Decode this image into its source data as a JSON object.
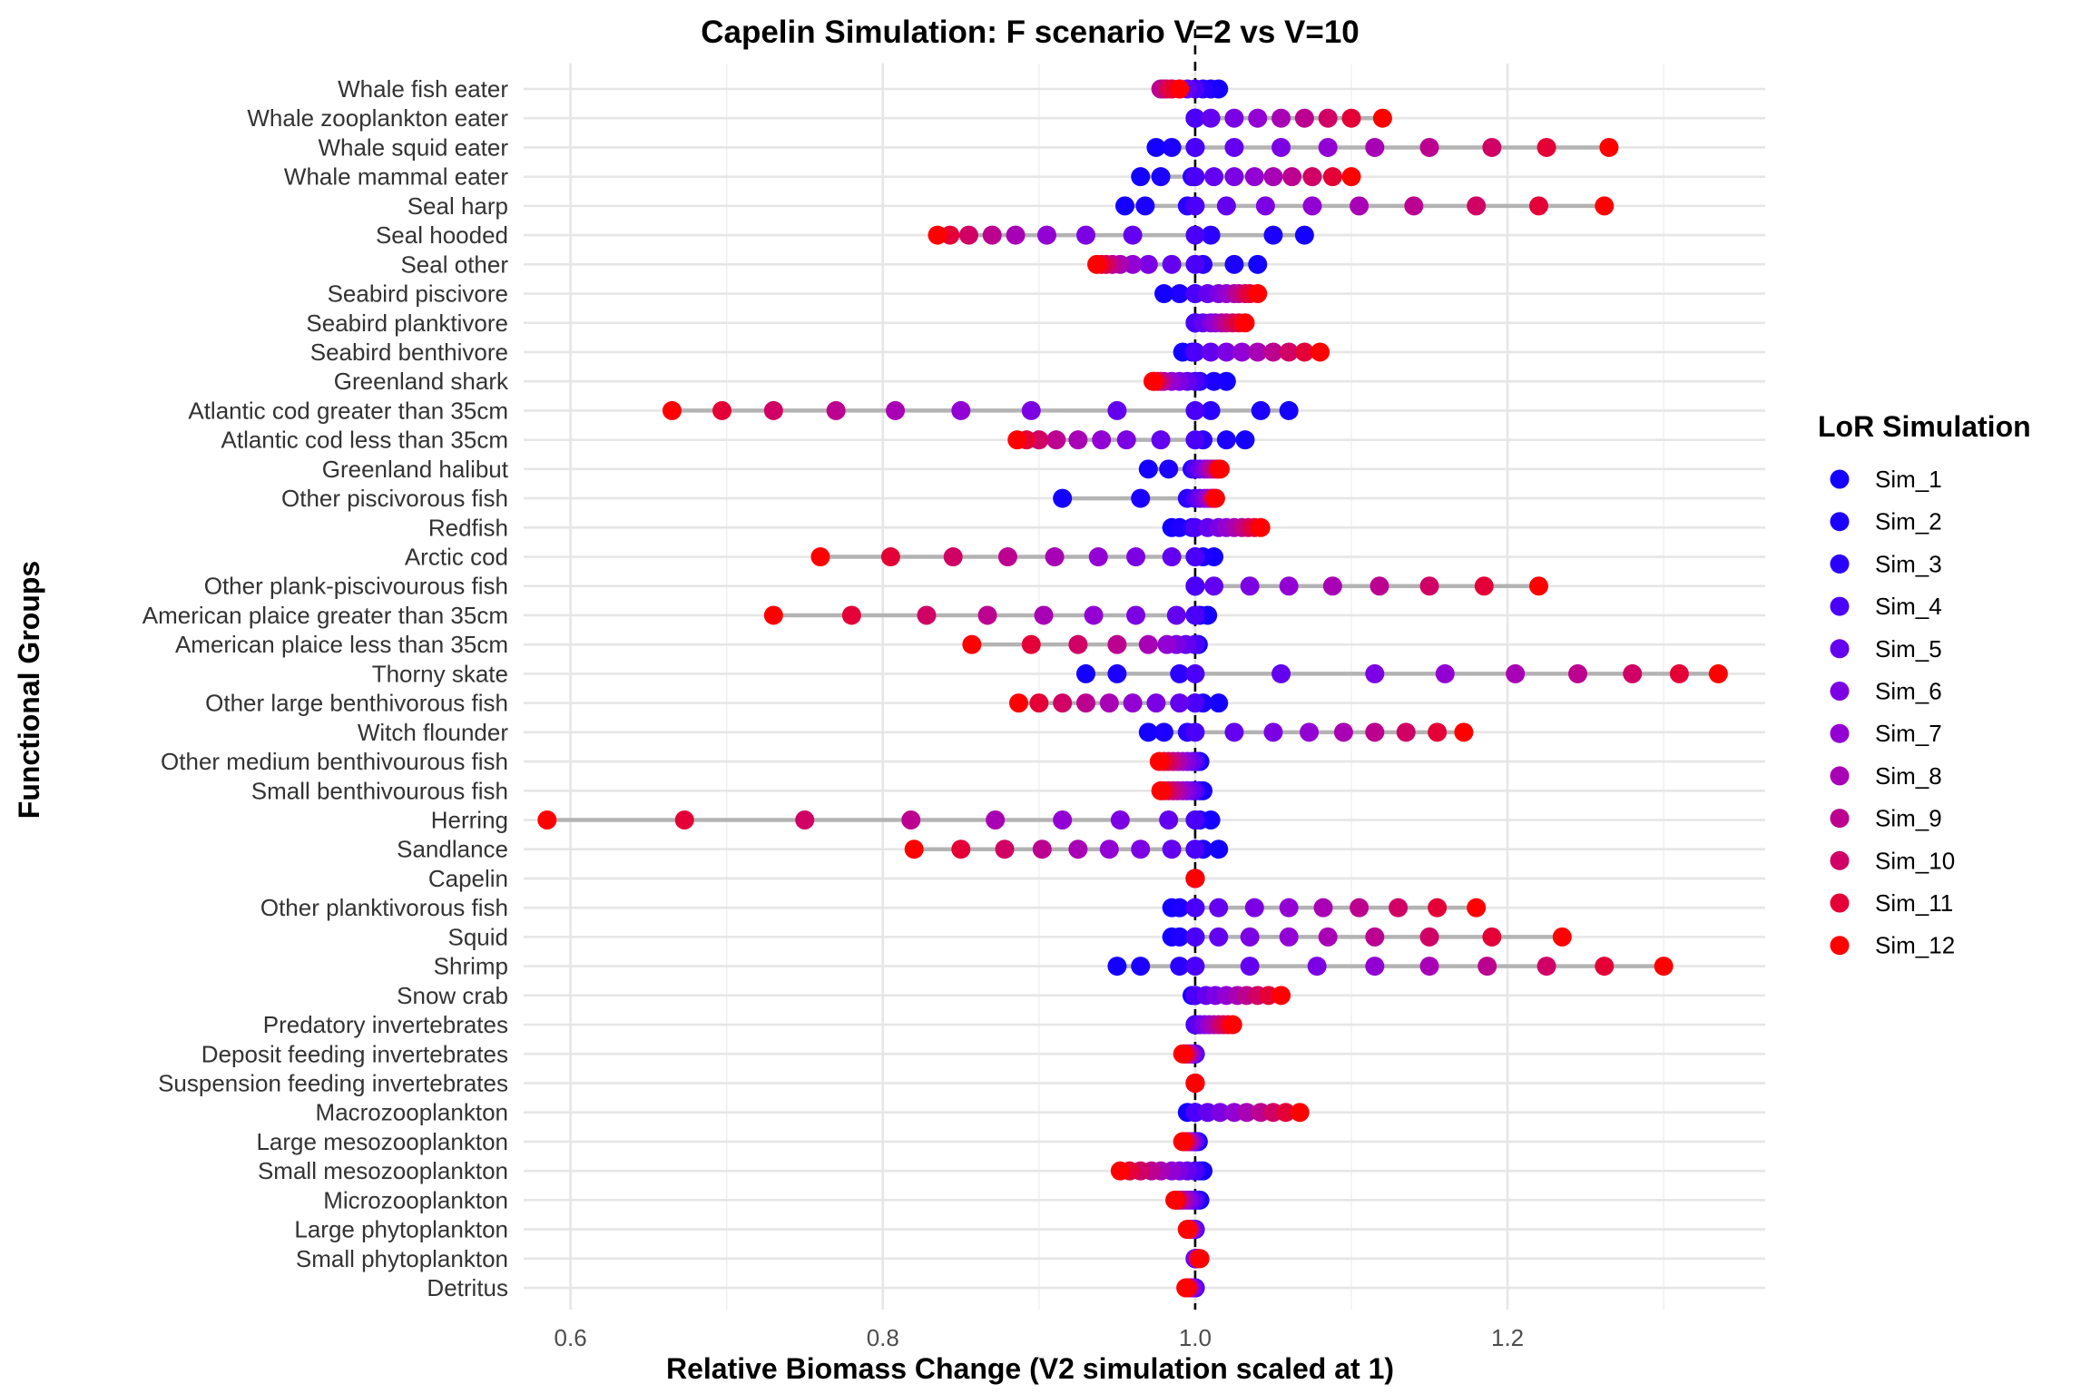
{
  "chart_data": {
    "type": "scatter",
    "title": "Capelin Simulation: F scenario V=2 vs V=10",
    "xlabel": "Relative Biomass Change (V2 simulation scaled at 1)",
    "ylabel": "Functional Groups",
    "xlim": [
      0.57,
      1.365
    ],
    "x_ticks": [
      0.6,
      0.8,
      1.0,
      1.2
    ],
    "x_tick_labels": [
      "0.6",
      "0.8",
      "1.0",
      "1.2"
    ],
    "reference_line": 1.0,
    "grid": true,
    "legend_title": "LoR Simulation",
    "legend_position": "right",
    "series": [
      {
        "name": "Sim_1",
        "color": "#1400FF"
      },
      {
        "name": "Sim_2",
        "color": "#1C00FF"
      },
      {
        "name": "Sim_3",
        "color": "#2A00FF"
      },
      {
        "name": "Sim_4",
        "color": "#4A00F8"
      },
      {
        "name": "Sim_5",
        "color": "#6400F0"
      },
      {
        "name": "Sim_6",
        "color": "#7C00E4"
      },
      {
        "name": "Sim_7",
        "color": "#9200D4"
      },
      {
        "name": "Sim_8",
        "color": "#A800B4"
      },
      {
        "name": "Sim_9",
        "color": "#BC0090"
      },
      {
        "name": "Sim_10",
        "color": "#D00064"
      },
      {
        "name": "Sim_11",
        "color": "#E40036"
      },
      {
        "name": "Sim_12",
        "color": "#FF0000"
      }
    ],
    "groups": [
      {
        "name": "Whale fish eater",
        "values": [
          1.015,
          1.01,
          1.005,
          1.0,
          0.995,
          0.99,
          0.985,
          0.98,
          0.978,
          0.982,
          0.985,
          0.99
        ]
      },
      {
        "name": "Whale zooplankton eater",
        "values": [
          1.0,
          1.0,
          1.0,
          1.0,
          1.01,
          1.025,
          1.04,
          1.055,
          1.07,
          1.085,
          1.1,
          1.12
        ]
      },
      {
        "name": "Whale squid eater",
        "values": [
          0.975,
          0.985,
          1.0,
          1.0,
          1.025,
          1.055,
          1.085,
          1.115,
          1.15,
          1.19,
          1.225,
          1.265
        ]
      },
      {
        "name": "Whale mammal eater",
        "values": [
          0.965,
          0.978,
          0.998,
          1.0,
          1.012,
          1.025,
          1.038,
          1.05,
          1.062,
          1.075,
          1.088,
          1.1
        ]
      },
      {
        "name": "Seal harp",
        "values": [
          0.955,
          0.968,
          0.995,
          1.0,
          1.02,
          1.045,
          1.075,
          1.105,
          1.14,
          1.18,
          1.22,
          1.262
        ]
      },
      {
        "name": "Seal hooded",
        "values": [
          1.07,
          1.05,
          1.01,
          1.0,
          0.96,
          0.93,
          0.905,
          0.885,
          0.87,
          0.855,
          0.843,
          0.835
        ]
      },
      {
        "name": "Seal other",
        "values": [
          1.04,
          1.025,
          1.005,
          1.0,
          0.985,
          0.97,
          0.96,
          0.952,
          0.947,
          0.943,
          0.94,
          0.937
        ]
      },
      {
        "name": "Seabird piscivore",
        "values": [
          0.98,
          0.99,
          1.0,
          1.0,
          1.008,
          1.015,
          1.02,
          1.025,
          1.028,
          1.032,
          1.035,
          1.04
        ]
      },
      {
        "name": "Seabird planktivore",
        "values": [
          1.0,
          1.0,
          1.0,
          1.0,
          1.005,
          1.01,
          1.013,
          1.017,
          1.02,
          1.024,
          1.028,
          1.032
        ]
      },
      {
        "name": "Seabird benthivore",
        "values": [
          0.992,
          0.998,
          1.0,
          1.0,
          1.01,
          1.02,
          1.03,
          1.04,
          1.05,
          1.06,
          1.07,
          1.08
        ]
      },
      {
        "name": "Greenland shark",
        "values": [
          1.02,
          1.012,
          1.003,
          1.0,
          0.995,
          0.99,
          0.985,
          0.98,
          0.978,
          0.976,
          0.974,
          0.973
        ]
      },
      {
        "name": "Atlantic cod greater than 35cm",
        "values": [
          1.06,
          1.042,
          1.01,
          1.0,
          0.95,
          0.895,
          0.85,
          0.808,
          0.77,
          0.73,
          0.697,
          0.665
        ]
      },
      {
        "name": "Atlantic cod less than 35cm",
        "values": [
          1.032,
          1.02,
          1.005,
          1.0,
          0.978,
          0.956,
          0.94,
          0.925,
          0.911,
          0.9,
          0.892,
          0.886
        ]
      },
      {
        "name": "Greenland halibut",
        "values": [
          0.97,
          0.983,
          0.998,
          1.0,
          1.003,
          1.006,
          1.008,
          1.01,
          1.012,
          1.014,
          1.015,
          1.016
        ]
      },
      {
        "name": "Other piscivorous fish",
        "values": [
          0.915,
          0.965,
          0.995,
          1.0,
          1.003,
          1.006,
          1.008,
          1.01,
          1.011,
          1.012,
          1.013,
          1.013
        ]
      },
      {
        "name": "Redfish",
        "values": [
          0.985,
          0.99,
          0.998,
          1.0,
          1.008,
          1.015,
          1.02,
          1.025,
          1.03,
          1.034,
          1.038,
          1.042
        ]
      },
      {
        "name": "Arctic cod",
        "values": [
          1.012,
          1.005,
          1.0,
          1.0,
          0.985,
          0.962,
          0.938,
          0.91,
          0.88,
          0.845,
          0.805,
          0.76
        ]
      },
      {
        "name": "Other plank-piscivourous fish",
        "values": [
          1.0,
          1.0,
          1.0,
          1.0,
          1.012,
          1.035,
          1.06,
          1.088,
          1.118,
          1.15,
          1.185,
          1.22
        ]
      },
      {
        "name": "American plaice greater than 35cm",
        "values": [
          1.008,
          1.003,
          1.0,
          1.0,
          0.988,
          0.962,
          0.935,
          0.903,
          0.867,
          0.828,
          0.78,
          0.73
        ]
      },
      {
        "name": "American plaice less than 35cm",
        "values": [
          1.002,
          1.0,
          1.0,
          1.0,
          0.994,
          0.988,
          0.982,
          0.97,
          0.95,
          0.925,
          0.895,
          0.857
        ]
      },
      {
        "name": "Thorny skate",
        "values": [
          0.93,
          0.95,
          0.99,
          1.0,
          1.055,
          1.115,
          1.16,
          1.205,
          1.245,
          1.28,
          1.31,
          1.335
        ]
      },
      {
        "name": "Other large benthivorous fish",
        "values": [
          1.015,
          1.005,
          1.0,
          1.0,
          0.99,
          0.975,
          0.96,
          0.945,
          0.93,
          0.915,
          0.9,
          0.887
        ]
      },
      {
        "name": "Witch flounder",
        "values": [
          0.97,
          0.98,
          0.995,
          1.0,
          1.025,
          1.05,
          1.073,
          1.095,
          1.115,
          1.135,
          1.155,
          1.172
        ]
      },
      {
        "name": "Other medium benthivourous fish",
        "values": [
          1.003,
          1.002,
          1.0,
          1.0,
          0.998,
          0.995,
          0.992,
          0.989,
          0.986,
          0.983,
          0.98,
          0.977
        ]
      },
      {
        "name": "Small benthivourous fish",
        "values": [
          1.005,
          1.003,
          1.0,
          1.0,
          0.998,
          0.995,
          0.992,
          0.989,
          0.986,
          0.983,
          0.98,
          0.978
        ]
      },
      {
        "name": "Herring",
        "values": [
          1.01,
          1.003,
          1.0,
          1.0,
          0.983,
          0.952,
          0.915,
          0.872,
          0.818,
          0.75,
          0.673,
          0.585
        ]
      },
      {
        "name": "Sandlance",
        "values": [
          1.015,
          1.005,
          1.0,
          1.0,
          0.985,
          0.965,
          0.945,
          0.925,
          0.902,
          0.878,
          0.85,
          0.82
        ]
      },
      {
        "name": "Capelin",
        "values": [
          1.0,
          1.0,
          1.0,
          1.0,
          1.0,
          1.0,
          1.0,
          1.0,
          1.0,
          1.0,
          1.0,
          1.0
        ]
      },
      {
        "name": "Other planktivorous fish",
        "values": [
          0.985,
          0.99,
          1.0,
          1.0,
          1.015,
          1.038,
          1.06,
          1.082,
          1.105,
          1.13,
          1.155,
          1.18
        ]
      },
      {
        "name": "Squid",
        "values": [
          0.985,
          0.99,
          1.0,
          1.0,
          1.015,
          1.035,
          1.06,
          1.085,
          1.115,
          1.15,
          1.19,
          1.235
        ]
      },
      {
        "name": "Shrimp",
        "values": [
          0.95,
          0.965,
          0.99,
          1.0,
          1.035,
          1.078,
          1.115,
          1.15,
          1.187,
          1.225,
          1.262,
          1.3
        ]
      },
      {
        "name": "Snow crab",
        "values": [
          0.998,
          1.0,
          1.0,
          1.0,
          1.007,
          1.013,
          1.02,
          1.027,
          1.033,
          1.04,
          1.047,
          1.055
        ]
      },
      {
        "name": "Predatory invertebrates",
        "values": [
          1.0,
          1.0,
          1.0,
          1.0,
          1.003,
          1.006,
          1.009,
          1.012,
          1.015,
          1.018,
          1.021,
          1.024
        ]
      },
      {
        "name": "Deposit feeding invertebrates",
        "values": [
          1.0,
          1.0,
          1.0,
          1.0,
          0.999,
          0.998,
          0.997,
          0.996,
          0.995,
          0.994,
          0.993,
          0.992
        ]
      },
      {
        "name": "Suspension feeding invertebrates",
        "values": [
          1.0,
          1.0,
          1.0,
          1.0,
          1.0,
          1.0,
          1.0,
          1.0,
          1.0,
          1.0,
          1.0,
          1.0
        ]
      },
      {
        "name": "Macrozooplankton",
        "values": [
          0.995,
          1.0,
          1.0,
          1.0,
          1.008,
          1.016,
          1.025,
          1.033,
          1.042,
          1.05,
          1.058,
          1.067
        ]
      },
      {
        "name": "Large mesozooplankton",
        "values": [
          1.002,
          1.001,
          1.0,
          1.0,
          0.999,
          0.998,
          0.997,
          0.996,
          0.995,
          0.994,
          0.993,
          0.992
        ]
      },
      {
        "name": "Small mesozooplankton",
        "values": [
          1.005,
          1.003,
          1.0,
          1.0,
          0.995,
          0.99,
          0.985,
          0.978,
          0.972,
          0.965,
          0.958,
          0.952
        ]
      },
      {
        "name": "Microzooplankton",
        "values": [
          1.003,
          1.002,
          1.0,
          1.0,
          0.998,
          0.996,
          0.994,
          0.992,
          0.99,
          0.989,
          0.988,
          0.987
        ]
      },
      {
        "name": "Large phytoplankton",
        "values": [
          1.0,
          1.0,
          1.0,
          1.0,
          0.999,
          0.998,
          0.997,
          0.997,
          0.996,
          0.996,
          0.995,
          0.995
        ]
      },
      {
        "name": "Small phytoplankton",
        "values": [
          1.0,
          1.0,
          1.0,
          1.0,
          1.0,
          1.001,
          1.001,
          1.002,
          1.002,
          1.002,
          1.003,
          1.003
        ]
      },
      {
        "name": "Detritus",
        "values": [
          1.0,
          1.0,
          1.0,
          1.0,
          0.999,
          0.998,
          0.997,
          0.996,
          0.996,
          0.995,
          0.995,
          0.994
        ]
      }
    ]
  }
}
